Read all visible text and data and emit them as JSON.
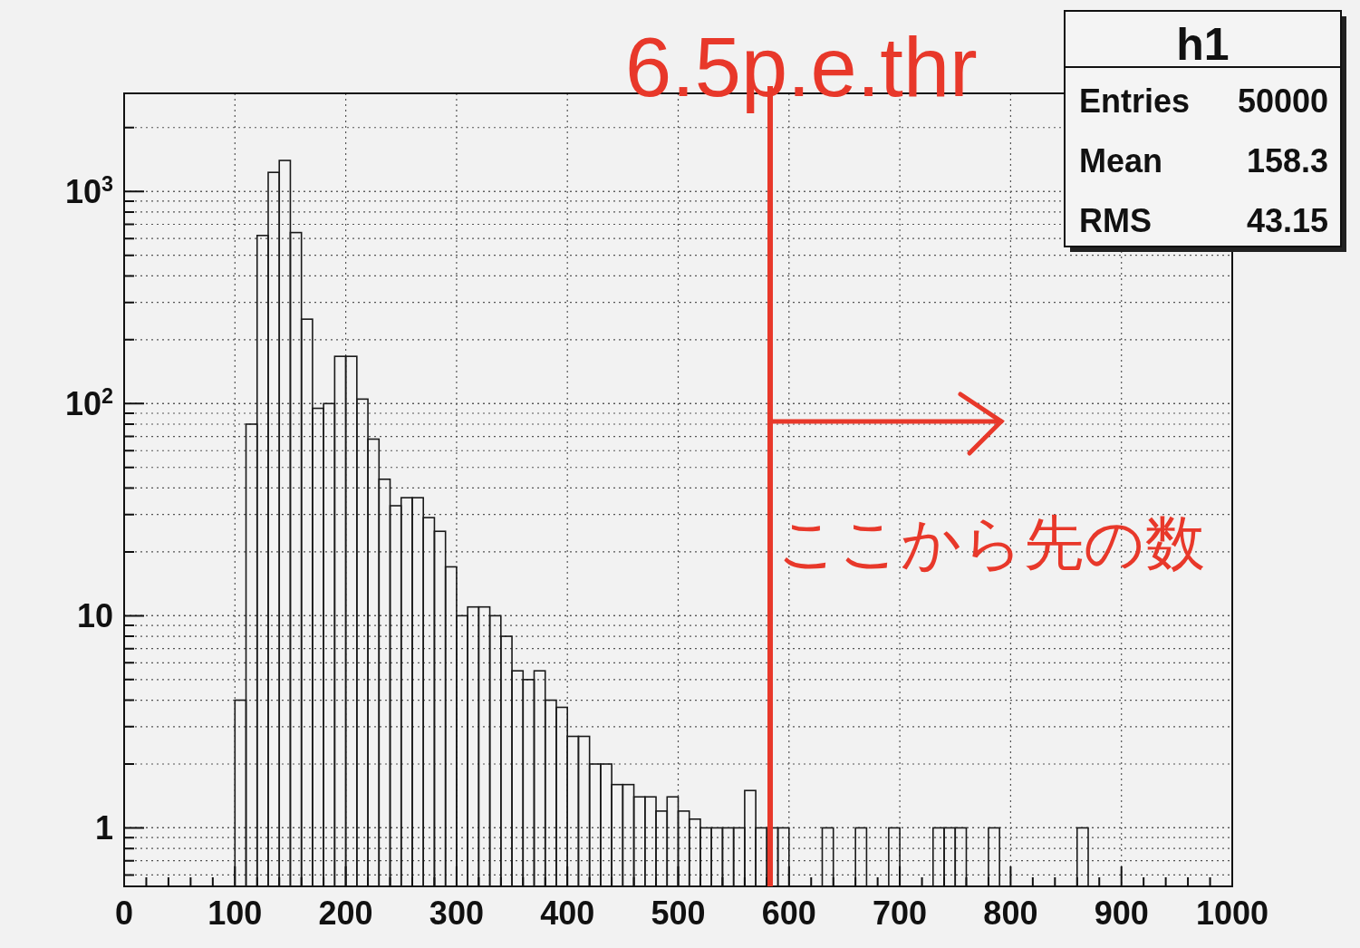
{
  "chart_data": {
    "type": "histogram",
    "bins": [
      100,
      110,
      120,
      130,
      140,
      150,
      160,
      170,
      180,
      190,
      200,
      210,
      220,
      230,
      240,
      250,
      260,
      270,
      280,
      290,
      300,
      310,
      320,
      330,
      340,
      350,
      360,
      370,
      380,
      390,
      400,
      410,
      420,
      430,
      440,
      450,
      460,
      470,
      480,
      490,
      500,
      510,
      520,
      530,
      540,
      550,
      560,
      570,
      580,
      590,
      600,
      610,
      620,
      630,
      640,
      650,
      660,
      670,
      680,
      690,
      700,
      710,
      720,
      730,
      740,
      750,
      760,
      770,
      780,
      790,
      800,
      810,
      820,
      830,
      840,
      850,
      860,
      870
    ],
    "values": [
      4,
      80,
      620,
      1230,
      1400,
      640,
      250,
      95,
      100,
      167,
      167,
      105,
      68,
      44,
      33,
      36,
      36,
      29,
      25,
      17,
      10,
      11,
      11,
      10,
      8,
      5.5,
      5,
      5.5,
      4,
      3.7,
      2.7,
      2.7,
      2,
      2,
      1.6,
      1.6,
      1.4,
      1.4,
      1.2,
      1.4,
      1.2,
      1.1,
      1,
      1,
      1,
      1,
      1.5,
      1,
      1,
      1,
      null,
      null,
      null,
      1,
      null,
      null,
      1,
      null,
      null,
      1,
      null,
      null,
      null,
      1,
      1,
      1,
      null,
      null,
      1,
      null,
      null,
      null,
      null,
      null,
      null,
      null,
      1
    ],
    "color": "#1a1a1a",
    "log": "y",
    "grid": true,
    "xlim": [
      0,
      1000
    ],
    "xticks": [
      0,
      100,
      200,
      300,
      400,
      500,
      600,
      700,
      800,
      900,
      1000
    ],
    "ylim": [
      0.53,
      2900
    ],
    "yticks": [
      1,
      10,
      {
        "value": 100,
        "label": "10$^{2}$"
      },
      {
        "value": 1000,
        "label": "10$^{3}$"
      }
    ],
    "ref_lines": [
      {
        "axis": "x",
        "value": 583,
        "label": "6.5p.e.thr",
        "color": "#e8382a"
      }
    ],
    "annotations": [
      "ここから先の数",
      "h1",
      "Entries",
      "50000",
      "Mean",
      "158.3",
      "RMS",
      "43.15"
    ]
  }
}
